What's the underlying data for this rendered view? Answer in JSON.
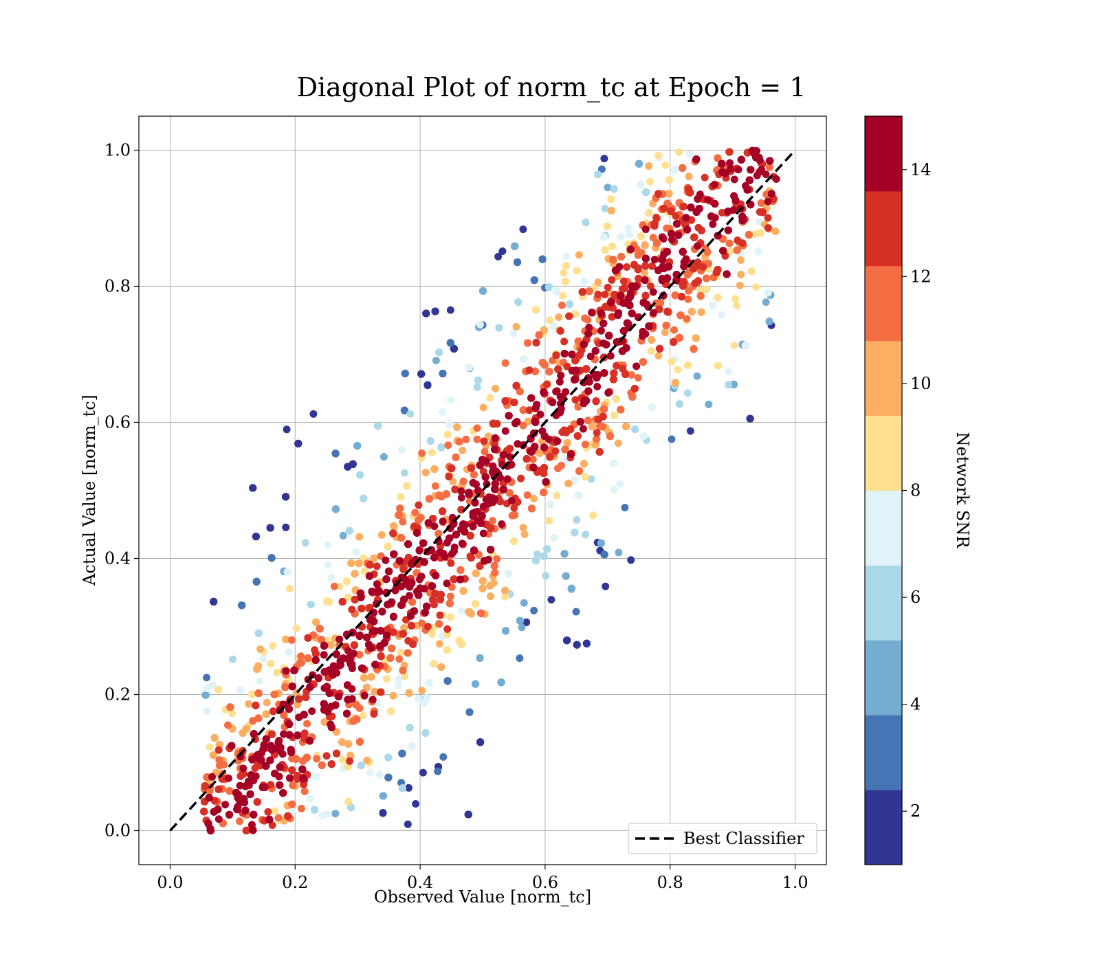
{
  "chart_data": {
    "type": "scatter",
    "title": "Diagonal Plot of norm_tc at Epoch = 1",
    "xlabel": "Observed Value [norm_tc]",
    "ylabel": "Actual Value [norm_tc]",
    "xlim": [
      -0.05,
      1.05
    ],
    "ylim": [
      -0.05,
      1.05
    ],
    "xticks": [
      "0.0",
      "0.2",
      "0.4",
      "0.6",
      "0.8",
      "1.0"
    ],
    "yticks": [
      "0.0",
      "0.2",
      "0.4",
      "0.6",
      "0.8",
      "1.0"
    ],
    "grid": true,
    "legend": {
      "placement": "lower-right",
      "entries": [
        "Best Classifier"
      ]
    },
    "reference_line": {
      "name": "Best Classifier",
      "x": [
        0,
        1
      ],
      "y": [
        0,
        1
      ],
      "style": "dashed",
      "color": "#000000"
    },
    "colorbar": {
      "label": "Network SNR",
      "range": [
        1,
        15
      ],
      "ticks": [
        "2",
        "4",
        "6",
        "8",
        "10",
        "12",
        "14"
      ],
      "colors": [
        "#313695",
        "#4575b4",
        "#74add1",
        "#abd9e9",
        "#e0f3f8",
        "#fee090",
        "#fdae61",
        "#f46d43",
        "#d73027",
        "#a50026"
      ]
    },
    "point_cloud": {
      "description_of_distribution": "dense band along the diagonal",
      "x_range": [
        0.05,
        0.97
      ],
      "y_range": [
        0.0,
        1.0
      ],
      "core_band_halfwidth": 0.12,
      "outer_spread": 0.3,
      "snr_high_near_diagonal": 15,
      "snr_low_far_from_diagonal": 1
    }
  }
}
